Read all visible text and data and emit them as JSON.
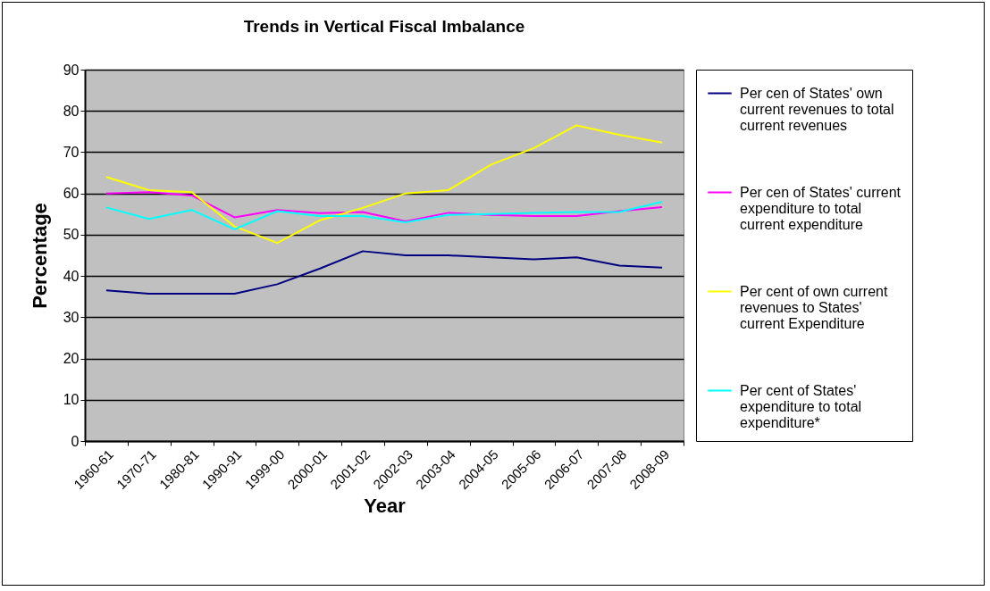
{
  "chart_data": {
    "type": "line",
    "title": "Trends in Vertical Fiscal Imbalance",
    "xlabel": "Year",
    "ylabel": "Percentage",
    "categories": [
      "1960-61",
      "1970-71",
      "1980-81",
      "1990-91",
      "1999-00",
      "2000-01",
      "2001-02",
      "2002-03",
      "2003-04",
      "2004-05",
      "2005-06",
      "2006-07",
      "2007-08",
      "2008-09"
    ],
    "series": [
      {
        "name": "Per cen of States' own current revenues to total current revenues",
        "color": "#000080",
        "values": [
          36.5,
          35.7,
          35.7,
          35.7,
          38,
          41.8,
          46,
          45,
          45,
          44.5,
          44,
          44.5,
          42.5,
          42
        ]
      },
      {
        "name": "Per cen of States' current expenditure to total current expenditure",
        "color": "#ff00ff",
        "values": [
          60,
          60.3,
          59.5,
          54.2,
          56,
          55.2,
          55.5,
          53.2,
          55.3,
          54.8,
          54.5,
          54.5,
          55.7,
          56.7
        ]
      },
      {
        "name": "Per cent of own current revenues to States' current Expenditure",
        "color": "#ffff00",
        "values": [
          64,
          60.8,
          60.3,
          52,
          48,
          53.5,
          56.5,
          60,
          60.8,
          67,
          71,
          76.5,
          74.2,
          72.3
        ]
      },
      {
        "name": "Per cent of States' expenditure to total expenditure*",
        "color": "#00ffff",
        "values": [
          56.6,
          53.8,
          56,
          51.3,
          55.7,
          54.5,
          54.5,
          53,
          54.8,
          55,
          55.3,
          55.5,
          55.5,
          58
        ]
      }
    ],
    "ylim": [
      0,
      90
    ],
    "yticks": [
      0,
      10,
      20,
      30,
      40,
      50,
      60,
      70,
      80,
      90
    ],
    "grid": "y",
    "legend": "right",
    "marker": "none",
    "line_style": "solid"
  }
}
